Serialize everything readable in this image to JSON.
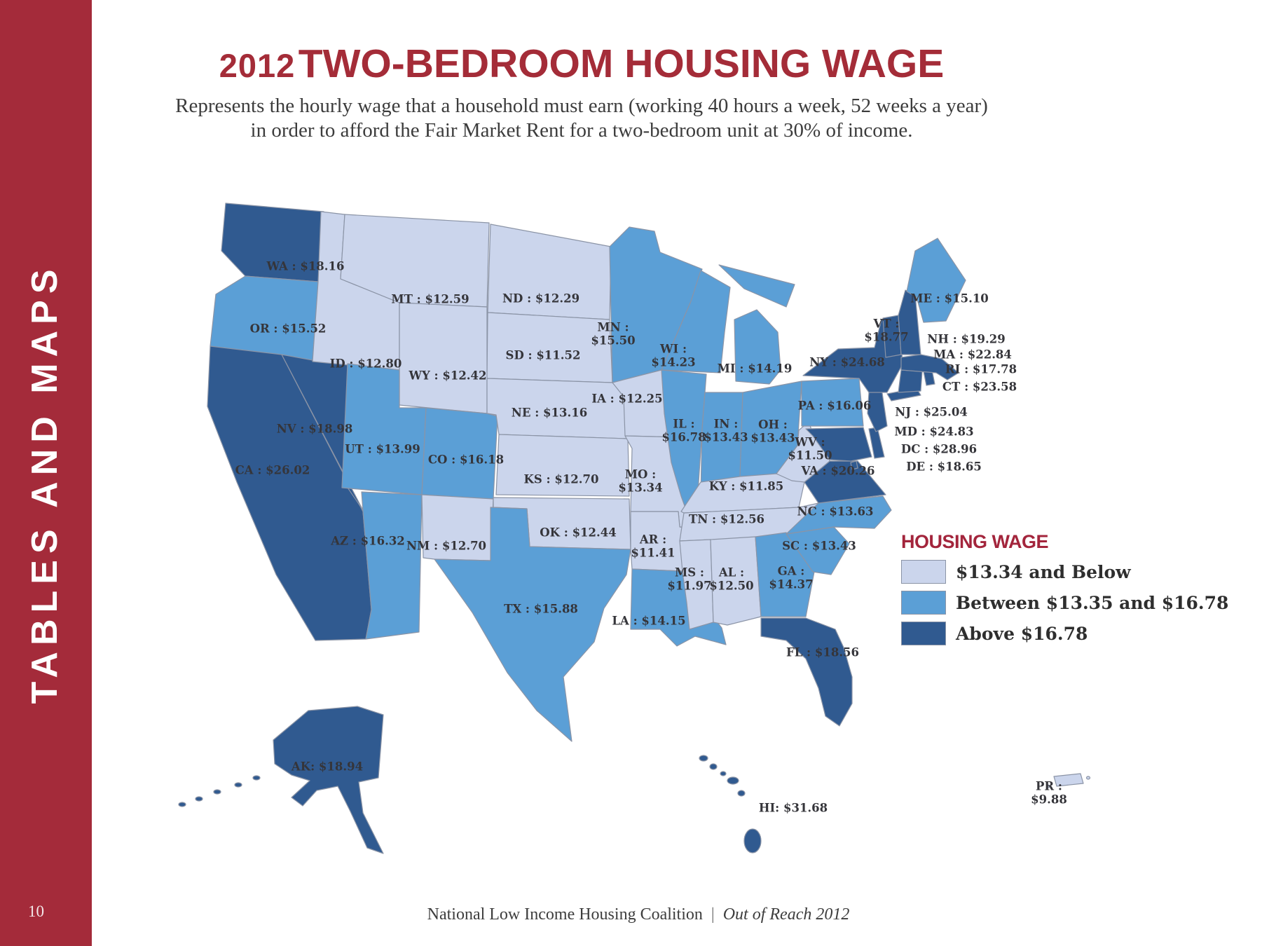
{
  "page": {
    "number": "10"
  },
  "sidebar": {
    "label": "TABLES AND MAPS",
    "band_color": "#a42b3a"
  },
  "header": {
    "title_year": "2012",
    "title_rest": "TWO-BEDROOM HOUSING WAGE",
    "title_color": "#a42c38",
    "subtitle_line1": "Represents the hourly wage that a household must earn (working 40 hours a week, 52 weeks a year)",
    "subtitle_line2": "in order to afford the Fair Market Rent for a two-bedroom unit at 30% of income."
  },
  "legend": {
    "title": "HOUSING WAGE",
    "items": [
      {
        "category": "low",
        "label": "$13.34 and Below",
        "color": "#cbd5ec"
      },
      {
        "category": "mid",
        "label": "Between $13.35 and $16.78",
        "color": "#5b9fd6"
      },
      {
        "category": "high",
        "label": "Above $16.78",
        "color": "#305a90"
      }
    ]
  },
  "map": {
    "states": [
      {
        "id": "WA",
        "label": "WA : $18.16",
        "wage": "$18.16",
        "category": "high"
      },
      {
        "id": "OR",
        "label": "OR : $15.52",
        "wage": "$15.52",
        "category": "mid"
      },
      {
        "id": "CA",
        "label": "CA : $26.02",
        "wage": "$26.02",
        "category": "high"
      },
      {
        "id": "NV",
        "label": "NV : $18.98",
        "wage": "$18.98",
        "category": "high"
      },
      {
        "id": "ID",
        "label": "ID : $12.80",
        "wage": "$12.80",
        "category": "low"
      },
      {
        "id": "MT",
        "label": "MT : $12.59",
        "wage": "$12.59",
        "category": "low"
      },
      {
        "id": "WY",
        "label": "WY : $12.42",
        "wage": "$12.42",
        "category": "low"
      },
      {
        "id": "UT",
        "label": "UT : $13.99",
        "wage": "$13.99",
        "category": "mid"
      },
      {
        "id": "CO",
        "label": "CO : $16.18",
        "wage": "$16.18",
        "category": "mid"
      },
      {
        "id": "AZ",
        "label": "AZ : $16.32",
        "wage": "$16.32",
        "category": "mid"
      },
      {
        "id": "NM",
        "label": "NM : $12.70",
        "wage": "$12.70",
        "category": "low"
      },
      {
        "id": "ND",
        "label": "ND : $12.29",
        "wage": "$12.29",
        "category": "low"
      },
      {
        "id": "SD",
        "label": "SD : $11.52",
        "wage": "$11.52",
        "category": "low"
      },
      {
        "id": "NE",
        "label": "NE : $13.16",
        "wage": "$13.16",
        "category": "low"
      },
      {
        "id": "KS",
        "label": "KS : $12.70",
        "wage": "$12.70",
        "category": "low"
      },
      {
        "id": "OK",
        "label": "OK : $12.44",
        "wage": "$12.44",
        "category": "low"
      },
      {
        "id": "TX",
        "label": "TX : $15.88",
        "wage": "$15.88",
        "category": "mid"
      },
      {
        "id": "MN",
        "label": "MN :\n$15.50",
        "wage": "$15.50",
        "category": "mid"
      },
      {
        "id": "IA",
        "label": "IA : $12.25",
        "wage": "$12.25",
        "category": "low"
      },
      {
        "id": "MO",
        "label": "MO :\n$13.34",
        "wage": "$13.34",
        "category": "low"
      },
      {
        "id": "AR",
        "label": "AR :\n$11.41",
        "wage": "$11.41",
        "category": "low"
      },
      {
        "id": "LA",
        "label": "LA : $14.15",
        "wage": "$14.15",
        "category": "mid"
      },
      {
        "id": "WI",
        "label": "WI :\n$14.23",
        "wage": "$14.23",
        "category": "mid"
      },
      {
        "id": "IL",
        "label": "IL :\n$16.78",
        "wage": "$16.78",
        "category": "mid"
      },
      {
        "id": "MI",
        "label": "MI : $14.19",
        "wage": "$14.19",
        "category": "mid"
      },
      {
        "id": "IN",
        "label": "IN :\n$13.43",
        "wage": "$13.43",
        "category": "mid"
      },
      {
        "id": "OH",
        "label": "OH :\n$13.43",
        "wage": "$13.43",
        "category": "mid"
      },
      {
        "id": "KY",
        "label": "KY : $11.85",
        "wage": "$11.85",
        "category": "low"
      },
      {
        "id": "TN",
        "label": "TN : $12.56",
        "wage": "$12.56",
        "category": "low"
      },
      {
        "id": "MS",
        "label": "MS :\n$11.97",
        "wage": "$11.97",
        "category": "low"
      },
      {
        "id": "AL",
        "label": "AL :\n$12.50",
        "wage": "$12.50",
        "category": "low"
      },
      {
        "id": "GA",
        "label": "GA :\n$14.37",
        "wage": "$14.37",
        "category": "mid"
      },
      {
        "id": "FL",
        "label": "FL : $18.56",
        "wage": "$18.56",
        "category": "high"
      },
      {
        "id": "SC",
        "label": "SC : $13.43",
        "wage": "$13.43",
        "category": "mid"
      },
      {
        "id": "NC",
        "label": "NC : $13.63",
        "wage": "$13.63",
        "category": "mid"
      },
      {
        "id": "VA",
        "label": "VA : $20.26",
        "wage": "$20.26",
        "category": "high"
      },
      {
        "id": "WV",
        "label": "WV :\n$11.50",
        "wage": "$11.50",
        "category": "low"
      },
      {
        "id": "PA",
        "label": "PA : $16.06",
        "wage": "$16.06",
        "category": "mid"
      },
      {
        "id": "NY",
        "label": "NY : $24.68",
        "wage": "$24.68",
        "category": "high"
      },
      {
        "id": "VT",
        "label": "VT :\n$18.77",
        "wage": "$18.77",
        "category": "high"
      },
      {
        "id": "ME",
        "label": "ME : $15.10",
        "wage": "$15.10",
        "category": "mid"
      },
      {
        "id": "NH",
        "label": "NH : $19.29",
        "wage": "$19.29",
        "category": "high"
      },
      {
        "id": "MA",
        "label": "MA : $22.84",
        "wage": "$22.84",
        "category": "high"
      },
      {
        "id": "RI",
        "label": "RI : $17.78",
        "wage": "$17.78",
        "category": "high"
      },
      {
        "id": "CT",
        "label": "CT : $23.58",
        "wage": "$23.58",
        "category": "high"
      },
      {
        "id": "NJ",
        "label": "NJ : $25.04",
        "wage": "$25.04",
        "category": "high"
      },
      {
        "id": "MD",
        "label": "MD : $24.83",
        "wage": "$24.83",
        "category": "high"
      },
      {
        "id": "DC",
        "label": "DC : $28.96",
        "wage": "$28.96",
        "category": "high"
      },
      {
        "id": "DE",
        "label": "DE : $18.65",
        "wage": "$18.65",
        "category": "high"
      },
      {
        "id": "AK",
        "label": "AK: $18.94",
        "wage": "$18.94",
        "category": "high"
      },
      {
        "id": "HI",
        "label": "HI: $31.68",
        "wage": "$31.68",
        "category": "high"
      },
      {
        "id": "PR",
        "label": "PR : $9.88",
        "wage": "$9.88",
        "category": "low"
      }
    ]
  },
  "footer": {
    "org": "National Low Income Housing Coalition",
    "separator": "|",
    "report": "Out of Reach 2012"
  }
}
